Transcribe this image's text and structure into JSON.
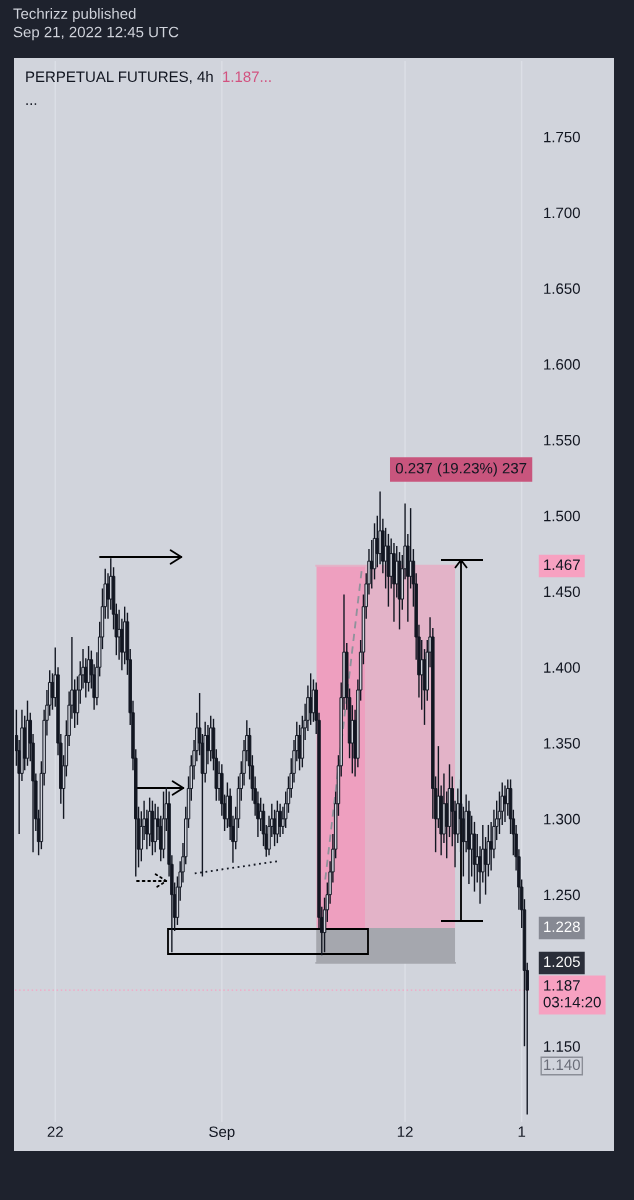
{
  "chart_data": {
    "type": "candlestick",
    "title": "PERPETUAL FUTURES, 4h",
    "annotations": [
      "Techrizz published\nSep 21, 2022 12:45 UTC",
      "1.187...",
      "...",
      "0.237 (19.23%) 237",
      "1.467",
      "1.228",
      "1.205",
      "1.140"
    ],
    "x": [
      "2022-08-19T16:00",
      "2022-08-19T20:00",
      "2022-08-20T00:00",
      "2022-08-20T04:00",
      "2022-08-20T08:00",
      "2022-08-20T12:00",
      "2022-08-20T16:00",
      "2022-08-20T20:00",
      "2022-08-21T00:00",
      "2022-08-21T04:00",
      "2022-08-21T08:00",
      "2022-08-21T12:00",
      "2022-08-21T16:00",
      "2022-08-21T20:00",
      "2022-08-22T00:00",
      "2022-08-22T04:00",
      "2022-08-22T08:00",
      "2022-08-22T12:00",
      "2022-08-22T16:00",
      "2022-08-22T20:00",
      "2022-08-23T00:00",
      "2022-08-23T04:00",
      "2022-08-23T08:00",
      "2022-08-23T12:00",
      "2022-08-23T16:00",
      "2022-08-23T20:00",
      "2022-08-24T00:00",
      "2022-08-24T04:00",
      "2022-08-24T08:00",
      "2022-08-24T12:00",
      "2022-08-24T16:00",
      "2022-08-24T20:00",
      "2022-08-25T00:00",
      "2022-08-25T04:00",
      "2022-08-25T08:00",
      "2022-08-25T12:00",
      "2022-08-25T16:00",
      "2022-08-25T20:00",
      "2022-08-26T00:00",
      "2022-08-26T04:00",
      "2022-08-26T08:00",
      "2022-08-26T12:00",
      "2022-08-26T16:00",
      "2022-08-26T20:00",
      "2022-08-27T00:00",
      "2022-08-27T04:00",
      "2022-08-27T08:00",
      "2022-08-27T12:00",
      "2022-08-27T16:00",
      "2022-08-27T20:00",
      "2022-08-28T00:00",
      "2022-08-28T04:00",
      "2022-08-28T08:00",
      "2022-08-28T12:00",
      "2022-08-28T16:00",
      "2022-08-28T20:00",
      "2022-08-29T00:00",
      "2022-08-29T04:00",
      "2022-08-29T08:00",
      "2022-08-29T12:00",
      "2022-08-29T16:00",
      "2022-08-29T20:00",
      "2022-08-30T00:00",
      "2022-08-30T04:00",
      "2022-08-30T08:00",
      "2022-08-30T12:00",
      "2022-08-30T16:00",
      "2022-08-30T20:00",
      "2022-08-31T00:00",
      "2022-08-31T04:00",
      "2022-08-31T08:00",
      "2022-08-31T12:00",
      "2022-08-31T16:00",
      "2022-08-31T20:00",
      "2022-09-01T00:00",
      "2022-09-01T04:00",
      "2022-09-01T08:00",
      "2022-09-01T12:00",
      "2022-09-01T16:00",
      "2022-09-01T20:00",
      "2022-09-02T00:00",
      "2022-09-02T04:00",
      "2022-09-02T08:00",
      "2022-09-02T12:00",
      "2022-09-02T16:00",
      "2022-09-02T20:00",
      "2022-09-03T00:00",
      "2022-09-03T04:00",
      "2022-09-03T08:00",
      "2022-09-03T12:00",
      "2022-09-03T16:00",
      "2022-09-03T20:00",
      "2022-09-04T00:00",
      "2022-09-04T04:00",
      "2022-09-04T08:00",
      "2022-09-04T12:00",
      "2022-09-04T16:00",
      "2022-09-04T20:00",
      "2022-09-05T00:00",
      "2022-09-05T04:00",
      "2022-09-05T08:00",
      "2022-09-05T12:00",
      "2022-09-05T16:00",
      "2022-09-05T20:00",
      "2022-09-06T00:00",
      "2022-09-06T04:00",
      "2022-09-06T08:00",
      "2022-09-06T12:00",
      "2022-09-06T16:00",
      "2022-09-06T20:00",
      "2022-09-07T00:00",
      "2022-09-07T04:00",
      "2022-09-07T08:00",
      "2022-09-07T12:00",
      "2022-09-07T16:00",
      "2022-09-07T20:00",
      "2022-09-08T00:00",
      "2022-09-08T04:00",
      "2022-09-08T08:00",
      "2022-09-08T12:00",
      "2022-09-08T16:00",
      "2022-09-08T20:00",
      "2022-09-09T00:00",
      "2022-09-09T04:00",
      "2022-09-09T08:00",
      "2022-09-09T12:00",
      "2022-09-09T16:00",
      "2022-09-09T20:00",
      "2022-09-10T00:00",
      "2022-09-10T04:00",
      "2022-09-10T08:00",
      "2022-09-10T12:00",
      "2022-09-10T16:00",
      "2022-09-10T20:00",
      "2022-09-11T00:00",
      "2022-09-11T04:00",
      "2022-09-11T08:00",
      "2022-09-11T12:00",
      "2022-09-11T16:00",
      "2022-09-11T20:00",
      "2022-09-12T00:00",
      "2022-09-12T04:00",
      "2022-09-12T08:00",
      "2022-09-12T12:00",
      "2022-09-12T16:00",
      "2022-09-12T20:00",
      "2022-09-13T00:00",
      "2022-09-13T04:00",
      "2022-09-13T08:00",
      "2022-09-13T12:00",
      "2022-09-13T16:00",
      "2022-09-13T20:00",
      "2022-09-14T00:00",
      "2022-09-14T04:00",
      "2022-09-14T08:00",
      "2022-09-14T12:00",
      "2022-09-14T16:00",
      "2022-09-14T20:00",
      "2022-09-15T00:00",
      "2022-09-15T04:00",
      "2022-09-15T08:00",
      "2022-09-15T12:00",
      "2022-09-15T16:00",
      "2022-09-15T20:00",
      "2022-09-16T00:00",
      "2022-09-16T04:00",
      "2022-09-16T08:00",
      "2022-09-16T12:00",
      "2022-09-16T16:00",
      "2022-09-16T20:00",
      "2022-09-17T00:00",
      "2022-09-17T04:00",
      "2022-09-17T08:00",
      "2022-09-17T12:00",
      "2022-09-17T16:00",
      "2022-09-17T20:00",
      "2022-09-18T00:00",
      "2022-09-18T04:00",
      "2022-09-18T08:00",
      "2022-09-18T12:00",
      "2022-09-18T16:00",
      "2022-09-18T20:00",
      "2022-09-19T00:00",
      "2022-09-19T04:00",
      "2022-09-19T08:00"
    ],
    "ohlc": [
      [
        1.355,
        1.372,
        1.335,
        1.345
      ],
      [
        1.345,
        1.352,
        1.29,
        1.33
      ],
      [
        1.33,
        1.372,
        1.325,
        1.36
      ],
      [
        1.36,
        1.368,
        1.332,
        1.34
      ],
      [
        1.34,
        1.378,
        1.335,
        1.365
      ],
      [
        1.365,
        1.37,
        1.338,
        1.35
      ],
      [
        1.35,
        1.356,
        1.278,
        1.325
      ],
      [
        1.325,
        1.33,
        1.292,
        1.3
      ],
      [
        1.3,
        1.306,
        1.276,
        1.285
      ],
      [
        1.285,
        1.338,
        1.28,
        1.33
      ],
      [
        1.33,
        1.372,
        1.322,
        1.365
      ],
      [
        1.365,
        1.385,
        1.355,
        1.375
      ],
      [
        1.375,
        1.398,
        1.368,
        1.39
      ],
      [
        1.39,
        1.396,
        1.372,
        1.38
      ],
      [
        1.38,
        1.413,
        1.374,
        1.395
      ],
      [
        1.395,
        1.4,
        1.342,
        1.35
      ],
      [
        1.35,
        1.356,
        1.31,
        1.32
      ],
      [
        1.32,
        1.342,
        1.3,
        1.335
      ],
      [
        1.335,
        1.365,
        1.328,
        1.355
      ],
      [
        1.355,
        1.384,
        1.348,
        1.375
      ],
      [
        1.375,
        1.42,
        1.366,
        1.385
      ],
      [
        1.385,
        1.392,
        1.36,
        1.37
      ],
      [
        1.37,
        1.394,
        1.362,
        1.385
      ],
      [
        1.385,
        1.404,
        1.376,
        1.395
      ],
      [
        1.395,
        1.412,
        1.386,
        1.4
      ],
      [
        1.4,
        1.406,
        1.38,
        1.39
      ],
      [
        1.39,
        1.414,
        1.384,
        1.405
      ],
      [
        1.405,
        1.411,
        1.386,
        1.395
      ],
      [
        1.395,
        1.402,
        1.372,
        1.38
      ],
      [
        1.38,
        1.41,
        1.375,
        1.4
      ],
      [
        1.4,
        1.43,
        1.394,
        1.42
      ],
      [
        1.42,
        1.452,
        1.412,
        1.44
      ],
      [
        1.44,
        1.465,
        1.432,
        1.455
      ],
      [
        1.455,
        1.462,
        1.432,
        1.445
      ],
      [
        1.445,
        1.472,
        1.438,
        1.46
      ],
      [
        1.46,
        1.466,
        1.425,
        1.435
      ],
      [
        1.435,
        1.442,
        1.408,
        1.42
      ],
      [
        1.42,
        1.438,
        1.405,
        1.425
      ],
      [
        1.425,
        1.432,
        1.398,
        1.41
      ],
      [
        1.41,
        1.44,
        1.402,
        1.43
      ],
      [
        1.43,
        1.436,
        1.395,
        1.405
      ],
      [
        1.405,
        1.412,
        1.362,
        1.37
      ],
      [
        1.37,
        1.378,
        1.332,
        1.34
      ],
      [
        1.34,
        1.346,
        1.262,
        1.3
      ],
      [
        1.3,
        1.308,
        1.268,
        1.28
      ],
      [
        1.28,
        1.305,
        1.272,
        1.295
      ],
      [
        1.295,
        1.312,
        1.286,
        1.3
      ],
      [
        1.3,
        1.306,
        1.28,
        1.29
      ],
      [
        1.29,
        1.314,
        1.282,
        1.305
      ],
      [
        1.305,
        1.312,
        1.276,
        1.285
      ],
      [
        1.285,
        1.31,
        1.278,
        1.3
      ],
      [
        1.3,
        1.308,
        1.286,
        1.295
      ],
      [
        1.295,
        1.302,
        1.272,
        1.28
      ],
      [
        1.28,
        1.318,
        1.274,
        1.3
      ],
      [
        1.3,
        1.321,
        1.292,
        1.31
      ],
      [
        1.31,
        1.318,
        1.262,
        1.27
      ],
      [
        1.27,
        1.276,
        1.212,
        1.25
      ],
      [
        1.25,
        1.258,
        1.226,
        1.235
      ],
      [
        1.235,
        1.262,
        1.23,
        1.255
      ],
      [
        1.255,
        1.272,
        1.246,
        1.265
      ],
      [
        1.265,
        1.284,
        1.258,
        1.275
      ],
      [
        1.275,
        1.308,
        1.27,
        1.3
      ],
      [
        1.3,
        1.328,
        1.294,
        1.32
      ],
      [
        1.32,
        1.342,
        1.312,
        1.335
      ],
      [
        1.335,
        1.352,
        1.326,
        1.345
      ],
      [
        1.345,
        1.37,
        1.338,
        1.36
      ],
      [
        1.36,
        1.383,
        1.342,
        1.35
      ],
      [
        1.35,
        1.356,
        1.262,
        1.33
      ],
      [
        1.33,
        1.364,
        1.324,
        1.355
      ],
      [
        1.355,
        1.362,
        1.336,
        1.345
      ],
      [
        1.345,
        1.368,
        1.338,
        1.36
      ],
      [
        1.36,
        1.366,
        1.332,
        1.34
      ],
      [
        1.34,
        1.346,
        1.312,
        1.32
      ],
      [
        1.32,
        1.338,
        1.312,
        1.33
      ],
      [
        1.33,
        1.336,
        1.302,
        1.31
      ],
      [
        1.31,
        1.316,
        1.292,
        1.3
      ],
      [
        1.3,
        1.324,
        1.294,
        1.315
      ],
      [
        1.315,
        1.32,
        1.286,
        1.295
      ],
      [
        1.295,
        1.302,
        1.271,
        1.285
      ],
      [
        1.285,
        1.308,
        1.28,
        1.3
      ],
      [
        1.3,
        1.328,
        1.294,
        1.32
      ],
      [
        1.32,
        1.338,
        1.312,
        1.33
      ],
      [
        1.33,
        1.352,
        1.322,
        1.345
      ],
      [
        1.345,
        1.365,
        1.338,
        1.355
      ],
      [
        1.355,
        1.36,
        1.326,
        1.335
      ],
      [
        1.335,
        1.342,
        1.312,
        1.32
      ],
      [
        1.32,
        1.328,
        1.302,
        1.31
      ],
      [
        1.31,
        1.318,
        1.288,
        1.3
      ],
      [
        1.3,
        1.314,
        1.292,
        1.305
      ],
      [
        1.305,
        1.31,
        1.282,
        1.29
      ],
      [
        1.29,
        1.296,
        1.275,
        1.28
      ],
      [
        1.28,
        1.302,
        1.276,
        1.295
      ],
      [
        1.295,
        1.31,
        1.288,
        1.3
      ],
      [
        1.3,
        1.306,
        1.282,
        1.29
      ],
      [
        1.29,
        1.312,
        1.284,
        1.305
      ],
      [
        1.305,
        1.31,
        1.288,
        1.295
      ],
      [
        1.295,
        1.308,
        1.29,
        1.3
      ],
      [
        1.3,
        1.318,
        1.294,
        1.31
      ],
      [
        1.31,
        1.328,
        1.304,
        1.32
      ],
      [
        1.32,
        1.34,
        1.314,
        1.33
      ],
      [
        1.33,
        1.352,
        1.324,
        1.345
      ],
      [
        1.345,
        1.364,
        1.338,
        1.355
      ],
      [
        1.355,
        1.362,
        1.332,
        1.34
      ],
      [
        1.34,
        1.368,
        1.334,
        1.36
      ],
      [
        1.36,
        1.376,
        1.352,
        1.365
      ],
      [
        1.365,
        1.388,
        1.358,
        1.38
      ],
      [
        1.38,
        1.396,
        1.362,
        1.37
      ],
      [
        1.37,
        1.392,
        1.364,
        1.385
      ],
      [
        1.385,
        1.39,
        1.356,
        1.365
      ],
      [
        1.365,
        1.37,
        1.228,
        1.235
      ],
      [
        1.235,
        1.242,
        1.21,
        1.225
      ],
      [
        1.225,
        1.248,
        1.212,
        1.24
      ],
      [
        1.24,
        1.258,
        1.232,
        1.25
      ],
      [
        1.25,
        1.272,
        1.244,
        1.265
      ],
      [
        1.265,
        1.29,
        1.258,
        1.28
      ],
      [
        1.28,
        1.318,
        1.274,
        1.31
      ],
      [
        1.31,
        1.342,
        1.302,
        1.335
      ],
      [
        1.335,
        1.39,
        1.328,
        1.38
      ],
      [
        1.38,
        1.448,
        1.372,
        1.41
      ],
      [
        1.41,
        1.416,
        1.372,
        1.38
      ],
      [
        1.38,
        1.386,
        1.34,
        1.35
      ],
      [
        1.35,
        1.375,
        1.33,
        1.365
      ],
      [
        1.365,
        1.372,
        1.328,
        1.34
      ],
      [
        1.34,
        1.392,
        1.334,
        1.385
      ],
      [
        1.385,
        1.418,
        1.378,
        1.41
      ],
      [
        1.41,
        1.448,
        1.402,
        1.44
      ],
      [
        1.44,
        1.462,
        1.432,
        1.455
      ],
      [
        1.455,
        1.478,
        1.448,
        1.47
      ],
      [
        1.47,
        1.484,
        1.452,
        1.465
      ],
      [
        1.465,
        1.495,
        1.458,
        1.485
      ],
      [
        1.485,
        1.5,
        1.466,
        1.475
      ],
      [
        1.475,
        1.516,
        1.468,
        1.49
      ],
      [
        1.49,
        1.498,
        1.462,
        1.47
      ],
      [
        1.47,
        1.492,
        1.452,
        1.48
      ],
      [
        1.48,
        1.488,
        1.44,
        1.46
      ],
      [
        1.46,
        1.485,
        1.452,
        1.475
      ],
      [
        1.475,
        1.482,
        1.43,
        1.455
      ],
      [
        1.455,
        1.48,
        1.446,
        1.47
      ],
      [
        1.47,
        1.476,
        1.425,
        1.445
      ],
      [
        1.445,
        1.474,
        1.438,
        1.465
      ],
      [
        1.465,
        1.508,
        1.458,
        1.48
      ],
      [
        1.48,
        1.488,
        1.43,
        1.46
      ],
      [
        1.46,
        1.505,
        1.452,
        1.47
      ],
      [
        1.47,
        1.478,
        1.44,
        1.455
      ],
      [
        1.455,
        1.462,
        1.405,
        1.42
      ],
      [
        1.42,
        1.428,
        1.38,
        1.395
      ],
      [
        1.395,
        1.418,
        1.372,
        1.405
      ],
      [
        1.405,
        1.412,
        1.362,
        1.385
      ],
      [
        1.385,
        1.418,
        1.378,
        1.41
      ],
      [
        1.41,
        1.433,
        1.4,
        1.42
      ],
      [
        1.42,
        1.426,
        1.3,
        1.32
      ],
      [
        1.32,
        1.328,
        1.278,
        1.3
      ],
      [
        1.3,
        1.348,
        1.294,
        1.315
      ],
      [
        1.315,
        1.322,
        1.276,
        1.29
      ],
      [
        1.29,
        1.33,
        1.284,
        1.31
      ],
      [
        1.31,
        1.318,
        1.274,
        1.295
      ],
      [
        1.295,
        1.336,
        1.288,
        1.32
      ],
      [
        1.32,
        1.328,
        1.282,
        1.305
      ],
      [
        1.305,
        1.312,
        1.268,
        1.29
      ],
      [
        1.29,
        1.32,
        1.284,
        1.31
      ],
      [
        1.31,
        1.326,
        1.278,
        1.3
      ],
      [
        1.3,
        1.308,
        1.262,
        1.285
      ],
      [
        1.285,
        1.316,
        1.278,
        1.305
      ],
      [
        1.305,
        1.312,
        1.257,
        1.28
      ],
      [
        1.28,
        1.302,
        1.262,
        1.29
      ],
      [
        1.29,
        1.298,
        1.252,
        1.27
      ],
      [
        1.27,
        1.29,
        1.258,
        1.275
      ],
      [
        1.275,
        1.282,
        1.244,
        1.265
      ],
      [
        1.265,
        1.296,
        1.258,
        1.28
      ],
      [
        1.28,
        1.288,
        1.25,
        1.27
      ],
      [
        1.27,
        1.296,
        1.262,
        1.285
      ],
      [
        1.285,
        1.298,
        1.266,
        1.28
      ],
      [
        1.28,
        1.306,
        1.274,
        1.295
      ],
      [
        1.295,
        1.312,
        1.286,
        1.3
      ],
      [
        1.3,
        1.318,
        1.29,
        1.305
      ],
      [
        1.305,
        1.324,
        1.296,
        1.315
      ],
      [
        1.315,
        1.322,
        1.298,
        1.31
      ],
      [
        1.31,
        1.326,
        1.302,
        1.32
      ],
      [
        1.32,
        1.326,
        1.29,
        1.3
      ],
      [
        1.3,
        1.306,
        1.276,
        1.29
      ],
      [
        1.29,
        1.296,
        1.266,
        1.275
      ],
      [
        1.275,
        1.28,
        1.24,
        1.255
      ],
      [
        1.255,
        1.26,
        1.228,
        1.24
      ],
      [
        1.24,
        1.247,
        1.15,
        1.2
      ],
      [
        1.2,
        1.205,
        1.105,
        1.187
      ]
    ],
    "color": "#131722",
    "series": [
      {
        "type": "line",
        "x": [
          "2022-09-06T16:00",
          "2022-09-15T00:00"
        ],
        "values": [
          1.467,
          1.467
        ],
        "lower": [
          1.228,
          1.228
        ],
        "upper": [
          1.467,
          1.467
        ],
        "color": "#e3b3c8"
      },
      {
        "type": "line",
        "x": [
          "2022-09-06T16:00",
          "2022-09-15T00:00"
        ],
        "values": [
          1.205,
          1.205
        ],
        "lower": [
          1.205,
          1.205
        ],
        "upper": [
          1.228,
          1.228
        ],
        "color": "#a5a7ae"
      },
      {
        "type": "line",
        "x": [
          "2022-08-30T09:00",
          "2022-09-04T08:00"
        ],
        "values": [
          1.264,
          1.272
        ],
        "color": "#131722",
        "line_style": "dotted"
      },
      {
        "type": "line",
        "x": [
          "2022-09-07T05:00",
          "2022-09-09T10:00"
        ],
        "values": [
          1.26,
          1.466
        ],
        "color": "#8f929b",
        "line_style": "dashed"
      }
    ],
    "xlim": [
      "2022-08-19T14:00",
      "2022-09-19T12:00"
    ],
    "ylim": [
      1.1,
      1.8
    ],
    "xticks": [
      {
        "value": "2022-08-22T00:00",
        "label": "22"
      },
      {
        "value": "2022-09-01T00:00",
        "label": "Sep"
      },
      {
        "value": "2022-09-12T00:00",
        "label": "12"
      },
      {
        "value": "2022-09-19T00:00",
        "label": "1"
      }
    ],
    "yticks": [
      {
        "value": 1.15,
        "label": "1.150"
      },
      {
        "value": 1.25,
        "label": "1.250"
      },
      {
        "value": 1.3,
        "label": "1.300"
      },
      {
        "value": 1.35,
        "label": "1.350"
      },
      {
        "value": 1.4,
        "label": "1.400"
      },
      {
        "value": 1.45,
        "label": "1.450"
      },
      {
        "value": 1.5,
        "label": "1.500"
      },
      {
        "value": 1.55,
        "label": "1.550"
      },
      {
        "value": 1.6,
        "label": "1.600"
      },
      {
        "value": 1.65,
        "label": "1.650"
      },
      {
        "value": 1.7,
        "label": "1.700"
      },
      {
        "value": 1.75,
        "label": "1.750"
      }
    ],
    "ref_lines": [
      {
        "axis": "y",
        "value": 1.187,
        "label": "1.187\n03:14:20",
        "color": "#f7a1c1",
        "line_style": "dotted"
      }
    ],
    "grid": "x"
  }
}
